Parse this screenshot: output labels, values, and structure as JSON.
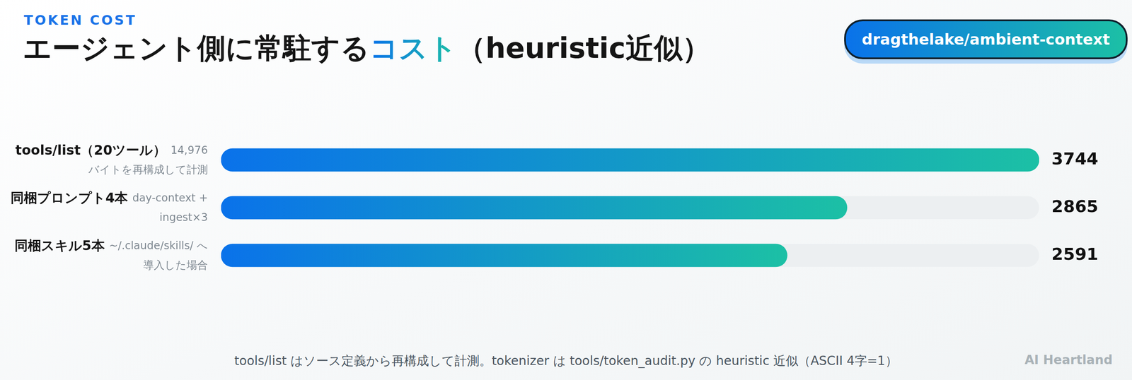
{
  "header": {
    "kicker": "TOKEN COST",
    "title_parts": [
      "エージェント側に常駐する",
      "コスト",
      "（heuristic近似）"
    ],
    "badge": "dragthelake/ambient-context"
  },
  "chart_data": {
    "type": "bar",
    "orientation": "horizontal",
    "categories": [
      "tools/list（20ツール）",
      "同梱プロンプト4本",
      "同梱スキル5本"
    ],
    "category_notes": [
      [
        "14,976",
        "バイトを再構成して計測"
      ],
      [
        "day-context +",
        "ingest×3"
      ],
      [
        "~/.claude/skills/ へ",
        "導入した場合"
      ]
    ],
    "values": [
      3744,
      2865,
      2591
    ],
    "color": "#0a72ea",
    "xlim": [
      0,
      3744
    ],
    "data_labels": true,
    "tick_labels": "y",
    "grid": false
  },
  "footer": {
    "note": "tools/list はソース定義から再構成して計測。tokenizer は tools/token_audit.py の heuristic 近似（ASCII 4字=1）",
    "brand": "AI Heartland"
  }
}
